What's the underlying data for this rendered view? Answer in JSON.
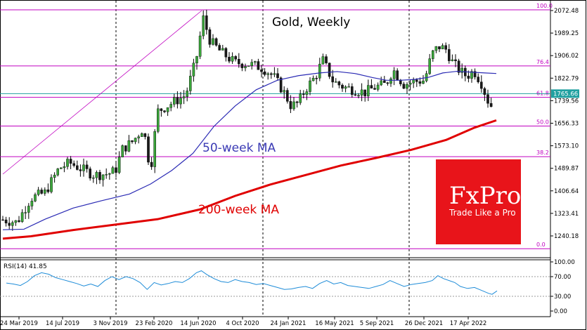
{
  "chart_data": {
    "type": "candlestick",
    "title": "Gold, Weekly",
    "ylim": [
      1200,
      2090
    ],
    "y_ticks": [
      "2072.48",
      "1989.25",
      "1906.02",
      "1822.79",
      "1739.56",
      "1656.33",
      "1573.10",
      "1489.87",
      "1406.64",
      "1323.41",
      "1240.18"
    ],
    "x_ticks": [
      "24 Mar 2019",
      "14 Jul 2019",
      "3 Nov 2019",
      "23 Feb 2020",
      "14 Jun 2020",
      "4 Oct 2020",
      "24 Jan 2021",
      "16 May 2021",
      "5 Sep 2021",
      "26 Dec 2021",
      "17 Apr 2022"
    ],
    "current_price": "1765.66",
    "fib_levels": [
      {
        "label": "100.0",
        "value": 2075
      },
      {
        "label": "76.4",
        "value": 1868
      },
      {
        "label": "61.8",
        "value": 1752
      },
      {
        "label": "50.0",
        "value": 1646
      },
      {
        "label": "38.2",
        "value": 1533
      },
      {
        "label": "0.0",
        "value": 1193
      }
    ],
    "series": [
      {
        "name": "50-week MA",
        "color": "#2a2ab4",
        "values": [
          [
            0,
            1263
          ],
          [
            30,
            1265
          ],
          [
            60,
            1302
          ],
          [
            100,
            1343
          ],
          [
            140,
            1370
          ],
          [
            180,
            1395
          ],
          [
            210,
            1432
          ],
          [
            240,
            1482
          ],
          [
            270,
            1545
          ],
          [
            300,
            1645
          ],
          [
            330,
            1720
          ],
          [
            360,
            1780
          ],
          [
            390,
            1815
          ],
          [
            420,
            1832
          ],
          [
            450,
            1842
          ],
          [
            475,
            1847
          ],
          [
            500,
            1840
          ],
          [
            525,
            1825
          ],
          [
            545,
            1815
          ],
          [
            565,
            1815
          ],
          [
            585,
            1818
          ],
          [
            605,
            1826
          ],
          [
            625,
            1842
          ],
          [
            645,
            1848
          ],
          [
            665,
            1845
          ],
          [
            685,
            1842
          ],
          [
            701,
            1840
          ]
        ]
      },
      {
        "name": "200-week MA",
        "color": "#e00000",
        "values": [
          [
            0,
            1230
          ],
          [
            40,
            1239
          ],
          [
            100,
            1262
          ],
          [
            160,
            1282
          ],
          [
            220,
            1302
          ],
          [
            280,
            1338
          ],
          [
            330,
            1388
          ],
          [
            380,
            1430
          ],
          [
            430,
            1465
          ],
          [
            480,
            1500
          ],
          [
            530,
            1528
          ],
          [
            580,
            1558
          ],
          [
            630,
            1595
          ],
          [
            670,
            1640
          ],
          [
            701,
            1667
          ]
        ]
      }
    ],
    "rsi": {
      "label": "RSI(14) 41.85",
      "ylim": [
        0,
        100
      ],
      "ticks": [
        "100.00",
        "70.00",
        "30.00",
        "0.00"
      ],
      "levels": [
        30,
        70
      ],
      "values": [
        [
          5,
          57
        ],
        [
          15,
          55
        ],
        [
          25,
          52
        ],
        [
          35,
          60
        ],
        [
          45,
          72
        ],
        [
          55,
          78
        ],
        [
          65,
          75
        ],
        [
          75,
          68
        ],
        [
          85,
          64
        ],
        [
          95,
          60
        ],
        [
          105,
          56
        ],
        [
          115,
          51
        ],
        [
          125,
          55
        ],
        [
          135,
          50
        ],
        [
          145,
          62
        ],
        [
          155,
          70
        ],
        [
          165,
          64
        ],
        [
          175,
          70
        ],
        [
          185,
          66
        ],
        [
          195,
          58
        ],
        [
          205,
          44
        ],
        [
          215,
          58
        ],
        [
          225,
          53
        ],
        [
          235,
          56
        ],
        [
          245,
          60
        ],
        [
          255,
          58
        ],
        [
          265,
          66
        ],
        [
          275,
          78
        ],
        [
          282,
          82
        ],
        [
          290,
          74
        ],
        [
          300,
          66
        ],
        [
          310,
          60
        ],
        [
          320,
          58
        ],
        [
          330,
          64
        ],
        [
          340,
          60
        ],
        [
          350,
          58
        ],
        [
          360,
          54
        ],
        [
          370,
          56
        ],
        [
          380,
          52
        ],
        [
          390,
          48
        ],
        [
          400,
          44
        ],
        [
          410,
          45
        ],
        [
          420,
          48
        ],
        [
          430,
          50
        ],
        [
          440,
          46
        ],
        [
          450,
          56
        ],
        [
          460,
          62
        ],
        [
          470,
          55
        ],
        [
          480,
          58
        ],
        [
          490,
          52
        ],
        [
          500,
          50
        ],
        [
          510,
          48
        ],
        [
          520,
          46
        ],
        [
          530,
          50
        ],
        [
          540,
          54
        ],
        [
          550,
          62
        ],
        [
          560,
          56
        ],
        [
          570,
          50
        ],
        [
          580,
          54
        ],
        [
          590,
          56
        ],
        [
          600,
          58
        ],
        [
          610,
          62
        ],
        [
          618,
          72
        ],
        [
          626,
          66
        ],
        [
          634,
          62
        ],
        [
          642,
          58
        ],
        [
          650,
          50
        ],
        [
          660,
          46
        ],
        [
          670,
          48
        ],
        [
          680,
          42
        ],
        [
          690,
          36
        ],
        [
          695,
          34
        ],
        [
          702,
          41
        ]
      ]
    }
  },
  "annotations": {
    "ma50": "50-week MA",
    "ma200": "200-week MA"
  },
  "logo": {
    "name": "FxPro",
    "tagline": "Trade Like a Pro",
    "color": "#e8141a"
  }
}
